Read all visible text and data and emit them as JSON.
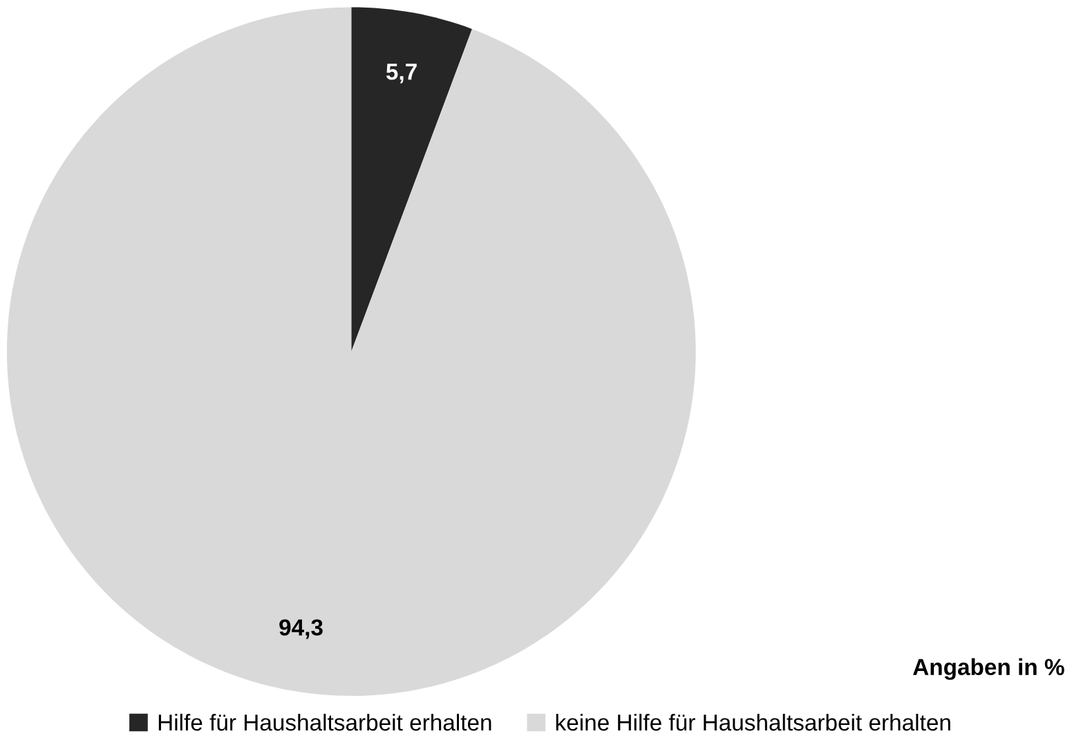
{
  "chart_data": {
    "type": "pie",
    "categories": [
      "Hilfe für Haushaltsarbeit erhalten",
      "keine Hilfe für Haushaltsarbeit erhalten"
    ],
    "values": [
      5.7,
      94.3
    ],
    "colors": [
      "#262626",
      "#d9d9d9"
    ],
    "value_labels": [
      "5,7",
      "94,3"
    ],
    "annotations": [
      "Angaben in %"
    ],
    "legend": "bottom"
  }
}
